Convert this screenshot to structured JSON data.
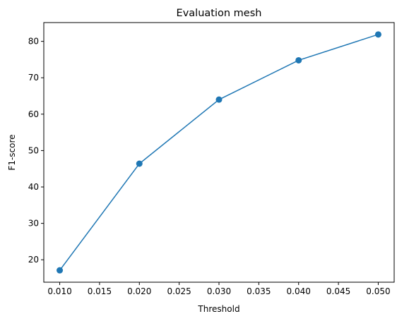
{
  "chart_data": {
    "type": "line",
    "title": "Evaluation mesh",
    "xlabel": "Threshold",
    "ylabel": "F1-score",
    "x": [
      0.01,
      0.02,
      0.03,
      0.04,
      0.05
    ],
    "series": [
      {
        "values": [
          17.1,
          46.4,
          64.0,
          74.8,
          81.9
        ],
        "color": "#1f77b4",
        "marker": "circle"
      }
    ],
    "xlim": [
      0.008,
      0.052
    ],
    "ylim": [
      13.84,
      85.16
    ],
    "xticks": [
      "0.010",
      "0.015",
      "0.020",
      "0.025",
      "0.030",
      "0.035",
      "0.040",
      "0.045",
      "0.050"
    ],
    "yticks": [
      "20",
      "30",
      "40",
      "50",
      "60",
      "70",
      "80"
    ],
    "grid": false,
    "legend": "none"
  }
}
